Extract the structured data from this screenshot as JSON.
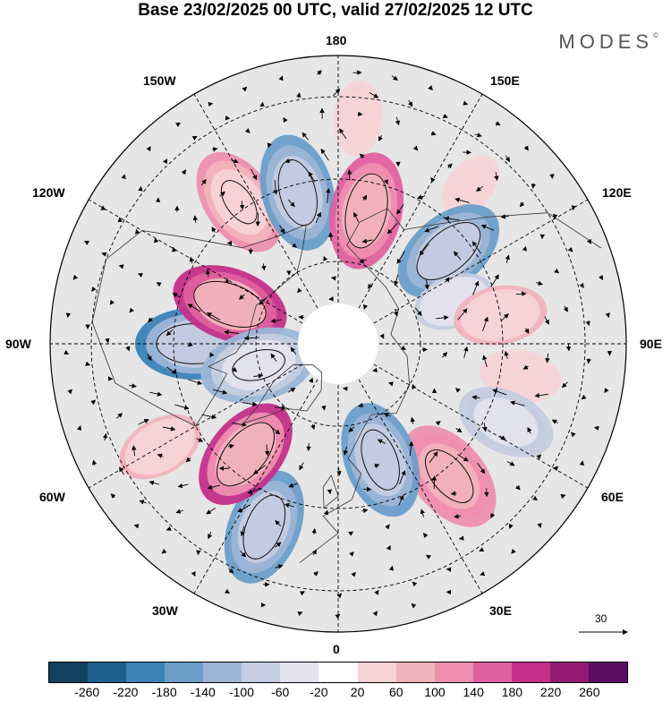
{
  "header": {
    "title": "Base 23/02/2025 00 UTC, valid 27/02/2025 12 UTC",
    "logo_text": "MODES",
    "logo_mark": "©"
  },
  "map": {
    "projection": "north-polar-stereographic",
    "center_longitude_bottom": "0",
    "longitude_labels": {
      "top": "180",
      "bottom": "0",
      "left": "90W",
      "right": "90E",
      "upper_left_1": "150W",
      "upper_left_2": "120W",
      "upper_right_1": "150E",
      "upper_right_2": "120E",
      "lower_left_1": "60W",
      "lower_left_2": "30W",
      "lower_right_1": "60E",
      "lower_right_2": "30E"
    },
    "reference_vector": "30",
    "anomalies": [
      {
        "lon": -145,
        "lat": 48,
        "value": 110
      },
      {
        "lon": -165,
        "lat": 52,
        "value": -150
      },
      {
        "lon": 168,
        "lat": 57,
        "value": 170
      },
      {
        "lon": 175,
        "lat": 35,
        "value": 50
      },
      {
        "lon": 140,
        "lat": 40,
        "value": 40
      },
      {
        "lon": 130,
        "lat": 55,
        "value": -170
      },
      {
        "lon": 110,
        "lat": 60,
        "value": -60
      },
      {
        "lon": 100,
        "lat": 50,
        "value": 80
      },
      {
        "lon": 80,
        "lat": 45,
        "value": 60
      },
      {
        "lon": 65,
        "lat": 45,
        "value": -90
      },
      {
        "lon": 40,
        "lat": 48,
        "value": 140
      },
      {
        "lon": 20,
        "lat": 60,
        "value": -140
      },
      {
        "lon": -22,
        "lat": 42,
        "value": -150
      },
      {
        "lon": -40,
        "lat": 55,
        "value": 190
      },
      {
        "lon": -60,
        "lat": 40,
        "value": 70
      },
      {
        "lon": -90,
        "lat": 55,
        "value": -180
      },
      {
        "lon": -110,
        "lat": 62,
        "value": 220
      },
      {
        "lon": -75,
        "lat": 70,
        "value": -120
      }
    ]
  },
  "colorbar": {
    "colors": [
      "#12405f",
      "#1f5f8b",
      "#3b82b7",
      "#6a9ec9",
      "#9cb5d6",
      "#c4ccdf",
      "#e4e2ee",
      "#ffffff",
      "#f6d4d6",
      "#f1b3bb",
      "#ee8fb0",
      "#e0619f",
      "#c52f8a",
      "#921a73",
      "#5a0c63"
    ],
    "tick_labels": [
      "-260",
      "-220",
      "-180",
      "-140",
      "-100",
      "-60",
      "-20",
      "20",
      "60",
      "100",
      "140",
      "180",
      "220",
      "260"
    ]
  }
}
